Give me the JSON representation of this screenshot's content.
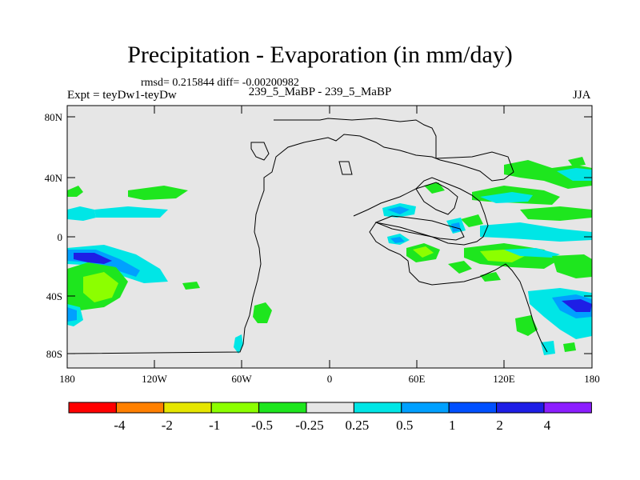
{
  "header": {
    "title": "Precipitation - Evaporation (in mm/day)",
    "stats": "rmsd= 0.215844 diff= -0.00200982",
    "expt_label": "Expt = teyDw1-teyDw",
    "expt_case": "239_5_MaBP - 239_5_MaBP",
    "season": "JJA"
  },
  "map": {
    "lat_labels": [
      "80N",
      "40N",
      "0",
      "40S",
      "80S"
    ],
    "lon_labels": [
      "180",
      "120W",
      "60W",
      "0",
      "60E",
      "120E",
      "180"
    ],
    "background": "#e6e6e6"
  },
  "colorbar": {
    "labels": [
      "-4",
      "-2",
      "-1",
      "-0.5",
      "-0.25",
      "0.25",
      "0.5",
      "1",
      "2",
      "4"
    ],
    "colors": [
      "#ff0000",
      "#ff8000",
      "#e6e600",
      "#8cff00",
      "#1ee61e",
      "#e6e6e6",
      "#00e6e6",
      "#00a0ff",
      "#0050ff",
      "#1e1ee6",
      "#8c1eff"
    ]
  }
}
